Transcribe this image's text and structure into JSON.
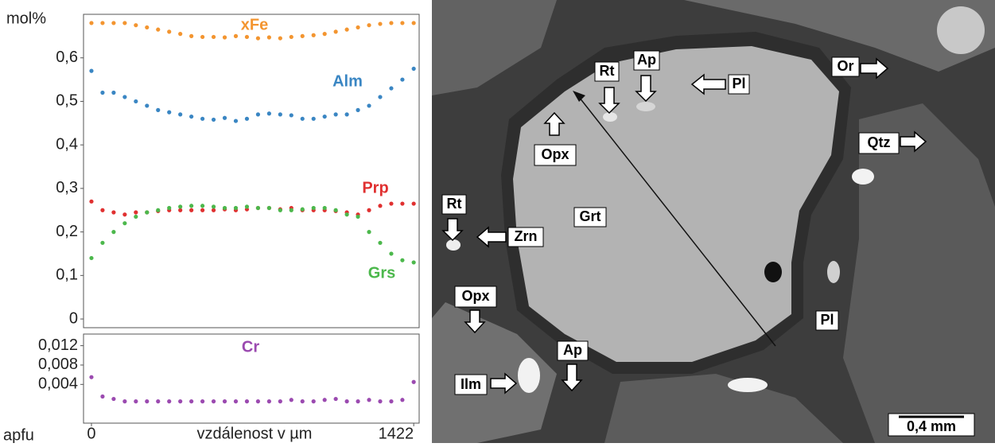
{
  "chart_data": [
    {
      "type": "scatter",
      "y_label": "mol%",
      "x": [
        0,
        49,
        98,
        147,
        196,
        245,
        294,
        343,
        392,
        441,
        490,
        539,
        588,
        637,
        686,
        735,
        784,
        833,
        882,
        931,
        980,
        1029,
        1078,
        1127,
        1176,
        1225,
        1274,
        1323,
        1372,
        1422
      ],
      "xlim": [
        -35,
        1446
      ],
      "ylim": [
        -0.02,
        0.7
      ],
      "yticks": [
        0,
        {
          "value": 0.1,
          "label": "0,1"
        },
        {
          "value": 0.2,
          "label": "0,2"
        },
        {
          "value": 0.3,
          "label": "0,3"
        },
        {
          "value": 0.4,
          "label": "0,4"
        },
        {
          "value": 0.5,
          "label": "0,5"
        },
        {
          "value": 0.6,
          "label": "0,6"
        }
      ],
      "series": [
        {
          "name": "xFe",
          "color": "#f39530",
          "values": [
            0.68,
            0.68,
            0.68,
            0.68,
            0.675,
            0.67,
            0.665,
            0.66,
            0.655,
            0.65,
            0.648,
            0.648,
            0.647,
            0.65,
            0.648,
            0.645,
            0.647,
            0.645,
            0.648,
            0.65,
            0.652,
            0.655,
            0.66,
            0.665,
            0.67,
            0.675,
            0.678,
            0.68,
            0.68,
            0.68
          ]
        },
        {
          "name": "Alm",
          "color": "#3a86c3",
          "values": [
            0.57,
            0.52,
            0.52,
            0.51,
            0.5,
            0.49,
            0.48,
            0.475,
            0.47,
            0.465,
            0.46,
            0.458,
            0.462,
            0.455,
            0.46,
            0.47,
            0.472,
            0.47,
            0.468,
            0.46,
            0.46,
            0.465,
            0.47,
            0.47,
            0.48,
            0.49,
            0.51,
            0.53,
            0.55,
            0.575
          ]
        },
        {
          "name": "Prp",
          "color": "#e03030",
          "values": [
            0.27,
            0.25,
            0.245,
            0.24,
            0.245,
            0.245,
            0.248,
            0.25,
            0.25,
            0.25,
            0.25,
            0.25,
            0.252,
            0.25,
            0.252,
            0.255,
            0.255,
            0.252,
            0.255,
            0.25,
            0.25,
            0.25,
            0.248,
            0.245,
            0.24,
            0.25,
            0.26,
            0.265,
            0.265,
            0.265
          ]
        },
        {
          "name": "Grs",
          "color": "#4cb84c",
          "values": [
            0.14,
            0.175,
            0.2,
            0.22,
            0.235,
            0.245,
            0.25,
            0.255,
            0.258,
            0.26,
            0.26,
            0.258,
            0.255,
            0.255,
            0.258,
            0.255,
            0.255,
            0.25,
            0.25,
            0.252,
            0.255,
            0.255,
            0.25,
            0.24,
            0.235,
            0.2,
            0.175,
            0.15,
            0.135,
            0.13
          ]
        }
      ]
    },
    {
      "type": "scatter",
      "y_label": "apfu",
      "x_label": "vzdálenost v µm",
      "x": [
        0,
        49,
        98,
        147,
        196,
        245,
        294,
        343,
        392,
        441,
        490,
        539,
        588,
        637,
        686,
        735,
        784,
        833,
        882,
        931,
        980,
        1029,
        1078,
        1127,
        1176,
        1225,
        1274,
        1323,
        1372,
        1422
      ],
      "xlim": [
        -35,
        1446
      ],
      "ylim": [
        -0.004,
        0.0144
      ],
      "xticks": [
        0,
        1422
      ],
      "yticks": [
        {
          "value": 0.004,
          "label": "0,004"
        },
        {
          "value": 0.008,
          "label": "0,008"
        },
        {
          "value": 0.012,
          "label": "0,012"
        }
      ],
      "series": [
        {
          "name": "Cr",
          "color": "#9b4ab0",
          "values": [
            0.0055,
            0.0015,
            0.001,
            0.0005,
            0.0005,
            0.0005,
            0.0005,
            0.0005,
            0.0005,
            0.0005,
            0.0005,
            0.0005,
            0.0005,
            0.0005,
            0.0005,
            0.0005,
            0.0005,
            0.0005,
            0.0008,
            0.0005,
            0.0005,
            0.0008,
            0.001,
            0.0005,
            0.0005,
            0.0008,
            0.0005,
            0.0005,
            0.0008,
            0.0045
          ]
        }
      ]
    }
  ],
  "image": {
    "labels": [
      "Rt",
      "Ap",
      "Pl",
      "Or",
      "Opx",
      "Qtz",
      "Grt",
      "Rt",
      "Zrn",
      "Pl",
      "Opx",
      "Ap",
      "Ilm"
    ],
    "scale_bar": "0,4 mm"
  }
}
